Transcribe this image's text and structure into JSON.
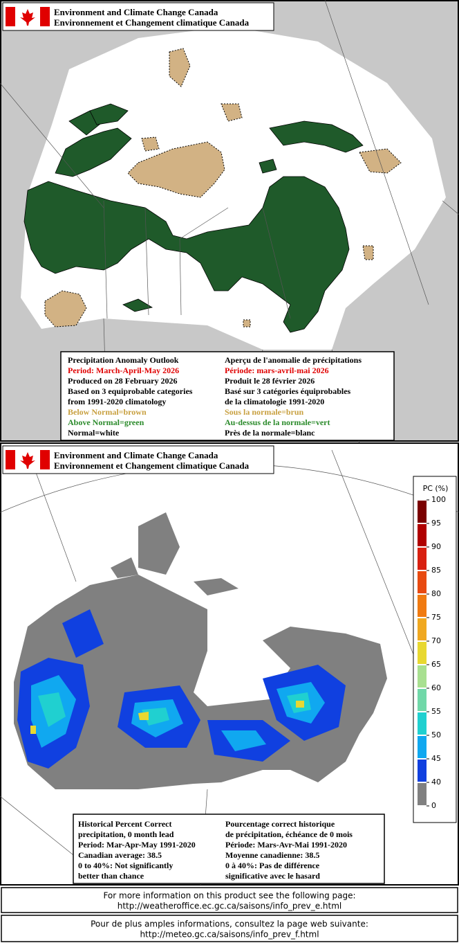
{
  "panels": [
    {
      "header": {
        "line1": "Environment and Climate Change Canada",
        "line2": "Environnement et Changement climatique Canada"
      },
      "info": {
        "left": [
          {
            "text": "Precipitation Anomaly Outlook",
            "color": "#000000"
          },
          {
            "text": "Period: March-April-May 2026",
            "color": "#e00000"
          },
          {
            "text": "Produced on 28 February 2026",
            "color": "#000000"
          },
          {
            "text": "Based on 3 equiprobable categories",
            "color": "#000000"
          },
          {
            "text": "from 1991-2020 climatology",
            "color": "#000000"
          },
          {
            "text": "Below Normal=brown",
            "color": "#c8a040"
          },
          {
            "text": "Above Normal=green",
            "color": "#2a8a2a"
          },
          {
            "text": "Normal=white",
            "color": "#000000"
          }
        ],
        "right": [
          {
            "text": "Aperçu de l'anomalie de précipitations",
            "color": "#000000"
          },
          {
            "text": "Période: mars-avril-mai 2026",
            "color": "#e00000"
          },
          {
            "text": "Produit le 28 février 2026",
            "color": "#000000"
          },
          {
            "text": "Basé sur 3 catégories équiprobables",
            "color": "#000000"
          },
          {
            "text": "de la climatologie 1991-2020",
            "color": "#000000"
          },
          {
            "text": "Sous la normale=brun",
            "color": "#c8a040"
          },
          {
            "text": "Au-dessus de la normale=vert",
            "color": "#2a8a2a"
          },
          {
            "text": "Près de la normale=blanc",
            "color": "#000000"
          }
        ]
      }
    },
    {
      "header": {
        "line1": "Environment and Climate Change Canada",
        "line2": "Environnement et Changement climatique Canada"
      },
      "info": {
        "left": [
          {
            "text": "Historical Percent Correct",
            "color": "#000000"
          },
          {
            "text": "precipitation, 0 month lead",
            "color": "#000000"
          },
          {
            "text": "Period: Mar-Apr-May 1991-2020",
            "color": "#000000"
          },
          {
            "text": "Canadian average: 38.5",
            "color": "#000000"
          },
          {
            "text": "0 to 40%: Not significantly",
            "color": "#000000"
          },
          {
            "text": "better than chance",
            "color": "#000000"
          }
        ],
        "right": [
          {
            "text": "Pourcentage correct historique",
            "color": "#000000"
          },
          {
            "text": "de précipitation, échéance de 0 mois",
            "color": "#000000"
          },
          {
            "text": "Période: Mars-Avr-Mai 1991-2020",
            "color": "#000000"
          },
          {
            "text": "Moyenne canadienne: 38.5",
            "color": "#000000"
          },
          {
            "text": "0 à 40%: Pas de différence",
            "color": "#000000"
          },
          {
            "text": "significative avec le hasard",
            "color": "#000000"
          }
        ]
      }
    }
  ],
  "legend": {
    "title": "PC (%)",
    "ticks": [
      100,
      95,
      90,
      85,
      80,
      75,
      70,
      65,
      60,
      55,
      50,
      45,
      40,
      0
    ],
    "colors": [
      "#7a0000",
      "#b00000",
      "#d82010",
      "#e84a10",
      "#f07a10",
      "#f0a820",
      "#e8d830",
      "#a8e090",
      "#70d8a8",
      "#20d0d0",
      "#10a8f0",
      "#1040e0",
      "#808080"
    ]
  },
  "footer": [
    {
      "line1": "For more information on this product see the following page:",
      "line2": "http://weatheroffice.ec.gc.ca/saisons/info_prev_e.html"
    },
    {
      "line1": "Pour de plus amples informations, consultez la page web suivante:",
      "line2": "http://meteo.gc.ca/saisons/info_prev_f.html"
    }
  ]
}
